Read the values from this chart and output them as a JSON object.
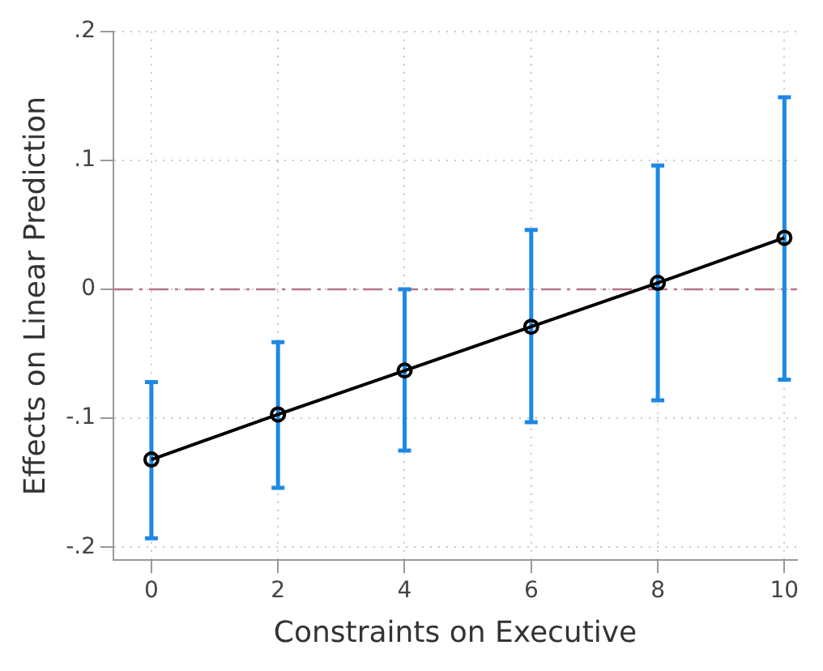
{
  "chart_data": {
    "type": "line",
    "xlabel": "Constraints on Executive",
    "ylabel": "Effects on Linear Prediction",
    "x": [
      0,
      2,
      4,
      6,
      8,
      10
    ],
    "series": [
      {
        "color": "#000000",
        "values": [
          -0.132,
          -0.097,
          -0.063,
          -0.029,
          0.005,
          0.04
        ],
        "errors": [
          [
            -0.193,
            -0.072
          ],
          [
            -0.154,
            -0.041
          ],
          [
            -0.125,
            0.0
          ],
          [
            -0.103,
            0.046
          ],
          [
            -0.086,
            0.096
          ],
          [
            -0.07,
            0.149
          ]
        ]
      }
    ],
    "xlim": [
      -0.6,
      10.2
    ],
    "xticks": [
      0,
      2,
      4,
      6,
      8,
      10
    ],
    "ylim": [
      -0.21,
      0.2
    ],
    "yticks": [
      {
        "value": -0.2,
        "label": "-.2"
      },
      {
        "value": -0.1,
        "label": "-.1"
      },
      0,
      {
        "value": 0.1,
        "label": ".1"
      },
      {
        "value": 0.2,
        "label": ".2"
      }
    ],
    "ref_lines": [
      {
        "axis": "y",
        "value": 0,
        "color": "#b5738f",
        "line_style": "dashed"
      }
    ],
    "grid": true,
    "legend": false,
    "marker": "circle",
    "line_style": "solid"
  }
}
